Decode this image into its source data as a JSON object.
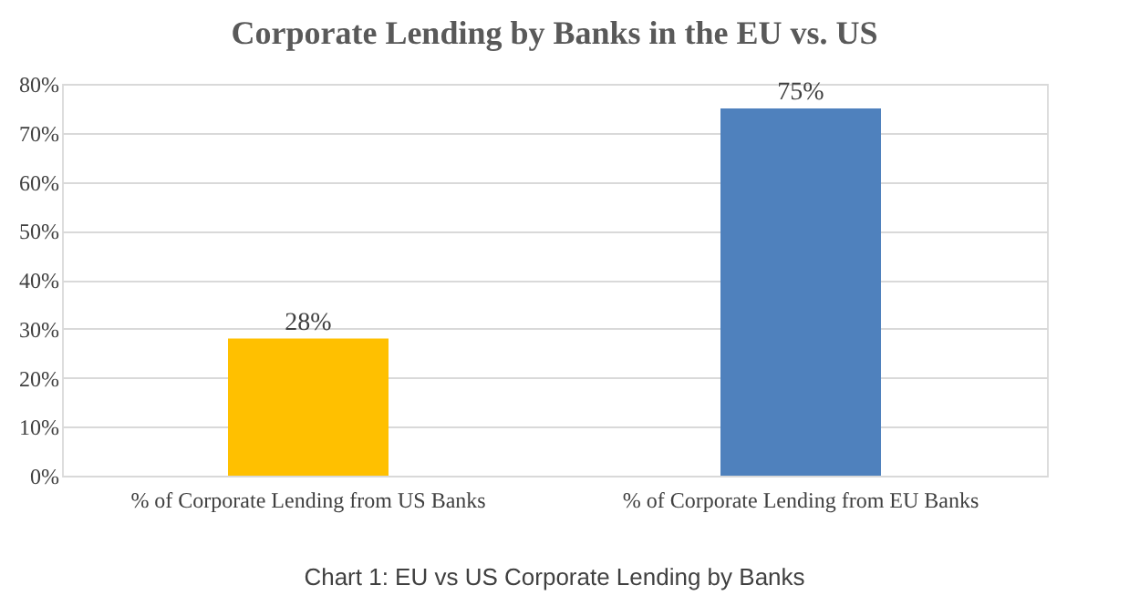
{
  "chart_data": {
    "type": "bar",
    "title": "Corporate Lending by Banks in the EU vs. US",
    "categories": [
      "% of Corporate Lending from US Banks",
      "% of Corporate Lending from EU Banks"
    ],
    "values": [
      28,
      75
    ],
    "colors": [
      "#ffc000",
      "#4f81bd"
    ],
    "value_labels": [
      "28%",
      "75%"
    ],
    "ylim": [
      0,
      80
    ],
    "yticks": [
      {
        "value": 0,
        "label": "0%"
      },
      {
        "value": 10,
        "label": "10%"
      },
      {
        "value": 20,
        "label": "20%"
      },
      {
        "value": 30,
        "label": "30%"
      },
      {
        "value": 40,
        "label": "40%"
      },
      {
        "value": 50,
        "label": "50%"
      },
      {
        "value": 60,
        "label": "60%"
      },
      {
        "value": 70,
        "label": "70%"
      },
      {
        "value": 80,
        "label": "80%"
      }
    ],
    "grid": "y",
    "annotations": [
      "Chart 1: EU vs US Corporate Lending by Banks"
    ]
  }
}
